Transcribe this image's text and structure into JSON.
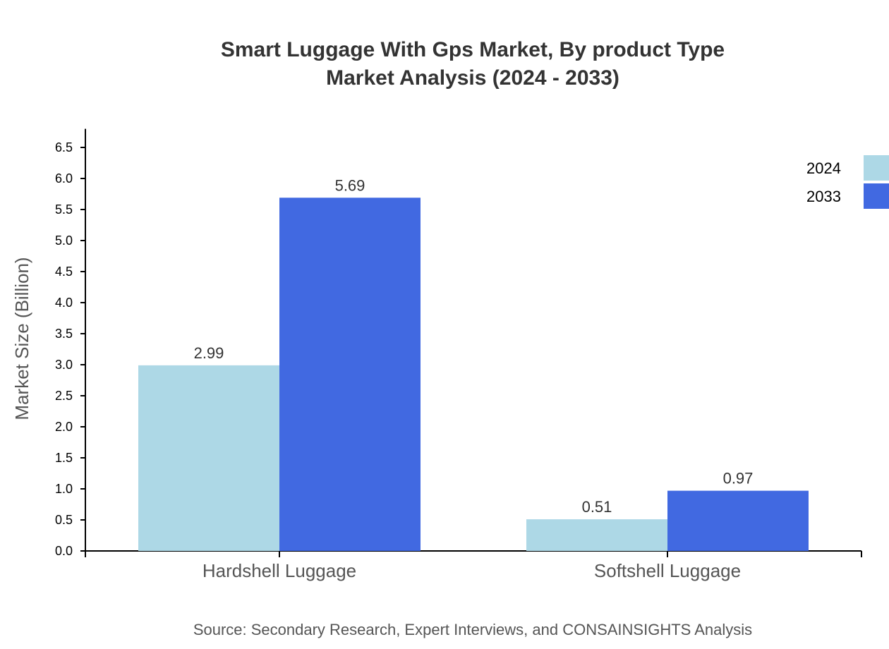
{
  "chart_data": {
    "type": "bar",
    "title_lines": [
      "Smart Luggage With Gps Market, By product Type",
      "Market Analysis (2024 - 2033)"
    ],
    "xlabel": "",
    "ylabel": "Market Size (Billion)",
    "categories": [
      "Hardshell Luggage",
      "Softshell Luggage"
    ],
    "series": [
      {
        "name": "2024",
        "values": [
          2.99,
          0.51
        ],
        "color": "#add8e6"
      },
      {
        "name": "2033",
        "values": [
          5.69,
          0.97
        ],
        "color": "#4169e1"
      }
    ],
    "ylim": [
      0,
      6.8
    ],
    "yticks": [
      "0.0",
      "0.5",
      "1.0",
      "1.5",
      "2.0",
      "2.5",
      "3.0",
      "3.5",
      "4.0",
      "4.5",
      "5.0",
      "5.5",
      "6.0",
      "6.5"
    ],
    "grid": false,
    "legend_position": "top-right",
    "source": "Source: Secondary Research, Expert Interviews, and CONSAINSIGHTS Analysis"
  }
}
